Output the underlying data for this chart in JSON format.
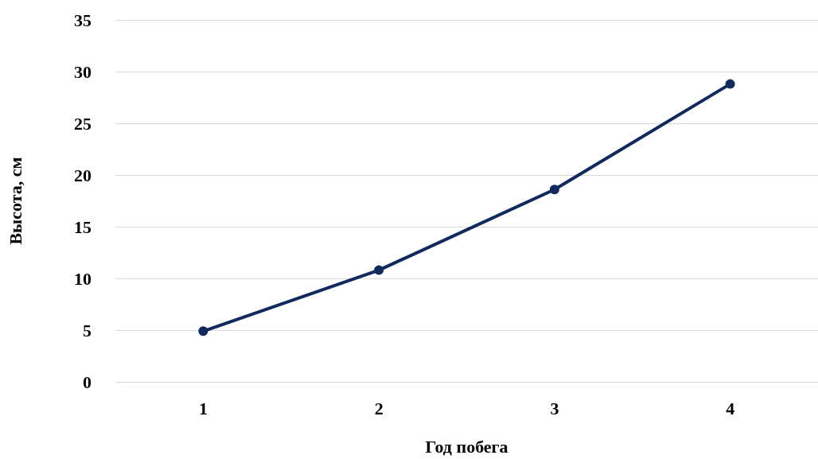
{
  "chart_data": {
    "type": "line",
    "xlabel": "Год побега",
    "ylabel": "Высота, см",
    "categories": [
      "1",
      "2",
      "3",
      "4"
    ],
    "series": [
      {
        "color": "#112a5e",
        "values": [
          4.9,
          10.8,
          18.6,
          28.8
        ]
      }
    ],
    "ylim": [
      0,
      35
    ],
    "yticks": [
      0,
      5,
      10,
      15,
      20,
      25,
      30,
      35
    ],
    "grid": "y",
    "marker": "circle",
    "line_style": "solid"
  }
}
